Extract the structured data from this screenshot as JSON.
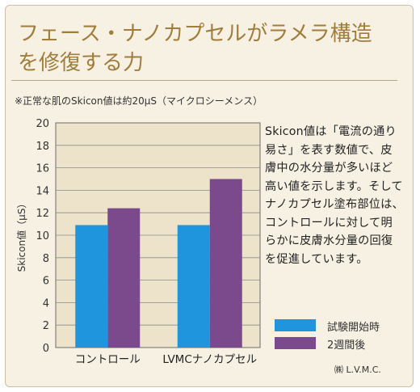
{
  "title": "フェース・ナノカプセルがラメラ構造を修復する力",
  "note": "※正常な肌のSkicon値は約20μS（マイクロシーメンス）",
  "description": "Skicon値は「電流の通り易さ」を表す数値で、皮膚中の水分量が多いほど高い値を示します。そしてナノカプセル塗布部位は、コントロールに対して明らかに皮膚水分量の回復を促進しています。",
  "credit": "㈱ L.V.M.C.",
  "colors": {
    "title": "#a07d3a",
    "background": "#f6f1e3",
    "plot_background": "#ede3cb",
    "series1": "#1e95dc",
    "series2": "#7a4a8c"
  },
  "chart_data": {
    "type": "bar",
    "categories": [
      "コントロール",
      "LVMCナノカプセル"
    ],
    "series": [
      {
        "name": "試験開始時",
        "values": [
          10.9,
          10.9
        ]
      },
      {
        "name": "2週間後",
        "values": [
          12.4,
          15.0
        ]
      }
    ],
    "ylabel": "Skicon値（μS）",
    "ylim": [
      0,
      20
    ],
    "yticks": [
      0,
      2,
      4,
      6,
      8,
      10,
      12,
      14,
      16,
      18,
      20
    ],
    "grid": true,
    "legend": "bottom-right"
  }
}
